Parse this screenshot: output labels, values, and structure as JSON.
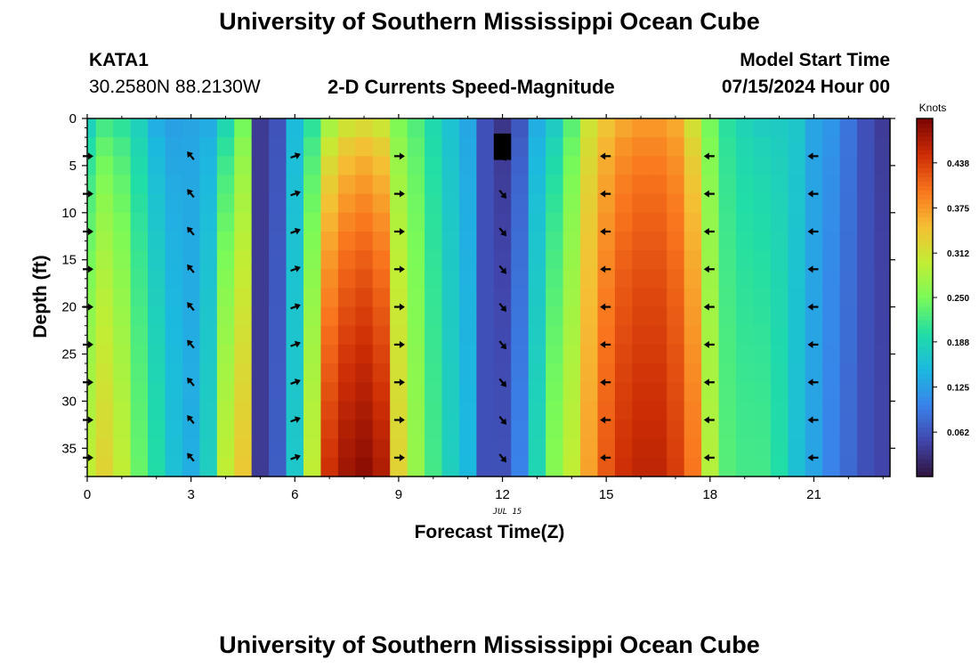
{
  "page": {
    "title_top": "University of Southern Mississippi Ocean Cube",
    "title_bottom": "University of Southern Mississippi Ocean Cube",
    "station_id": "KATA1",
    "station_coords": "30.2580N  88.2130W",
    "chart_subtitle": "2-D Currents Speed-Magnitude",
    "model_start_label": "Model Start Time",
    "model_start_value": "07/15/2024 Hour 00"
  },
  "chart_data": {
    "type": "heatmap",
    "title": "2-D Currents Speed-Magnitude",
    "xlabel": "Forecast Time(Z)",
    "ylabel": "Depth (ft)",
    "date_label": "JUL 15",
    "xlim": [
      0,
      23.2
    ],
    "ylim": [
      38,
      0
    ],
    "xticks": [
      0,
      3,
      6,
      9,
      12,
      15,
      18,
      21
    ],
    "yticks": [
      0,
      5,
      10,
      15,
      20,
      25,
      30,
      35
    ],
    "colorbar": {
      "label": "Knots",
      "ticks": [
        0.062,
        0.125,
        0.188,
        0.25,
        0.312,
        0.375,
        0.438
      ],
      "tick_labels": [
        "0.062",
        "0.125",
        "0.188",
        "0.250",
        "0.312",
        "0.375",
        "0.438"
      ],
      "range": [
        0.0,
        0.5
      ],
      "colormap": "turbo"
    },
    "hours": [
      0,
      0.5,
      1,
      1.5,
      2,
      2.5,
      3,
      3.5,
      4,
      4.5,
      5,
      5.5,
      6,
      6.5,
      7,
      7.5,
      8,
      8.5,
      9,
      9.5,
      10,
      10.5,
      11,
      11.5,
      12,
      12.5,
      13,
      13.5,
      14,
      14.5,
      15,
      15.5,
      16,
      16.5,
      17,
      17.5,
      18,
      18.5,
      19,
      19.5,
      20,
      20.5,
      21,
      21.5,
      22,
      22.5,
      23
    ],
    "speed_top": [
      0.16,
      0.2,
      0.19,
      0.17,
      0.13,
      0.12,
      0.13,
      0.13,
      0.17,
      0.23,
      0.04,
      0.06,
      0.15,
      0.19,
      0.25,
      0.28,
      0.29,
      0.28,
      0.24,
      0.22,
      0.19,
      0.16,
      0.13,
      0.06,
      0.03,
      0.06,
      0.13,
      0.16,
      0.22,
      0.3,
      0.33,
      0.35,
      0.36,
      0.36,
      0.35,
      0.3,
      0.24,
      0.2,
      0.18,
      0.17,
      0.17,
      0.17,
      0.13,
      0.12,
      0.09,
      0.06,
      0.04
    ],
    "speed_bottom": [
      0.3,
      0.33,
      0.3,
      0.24,
      0.2,
      0.16,
      0.14,
      0.18,
      0.3,
      0.34,
      0.04,
      0.07,
      0.17,
      0.3,
      0.45,
      0.48,
      0.49,
      0.47,
      0.33,
      0.27,
      0.22,
      0.18,
      0.15,
      0.06,
      0.06,
      0.1,
      0.19,
      0.26,
      0.3,
      0.37,
      0.42,
      0.45,
      0.46,
      0.46,
      0.44,
      0.4,
      0.29,
      0.23,
      0.22,
      0.22,
      0.2,
      0.16,
      0.13,
      0.1,
      0.08,
      0.06,
      0.05
    ],
    "missing_cells": [
      {
        "hour": 12,
        "depth_from": 1.6,
        "depth_to": 4.4
      }
    ],
    "vector_hours": [
      0,
      3,
      6,
      9,
      12,
      15,
      18,
      21
    ],
    "vector_depths": [
      4,
      8,
      12,
      16,
      20,
      24,
      28,
      32,
      36
    ],
    "vector_directions_deg": [
      0,
      130,
      20,
      0,
      310,
      180,
      180,
      180
    ]
  }
}
